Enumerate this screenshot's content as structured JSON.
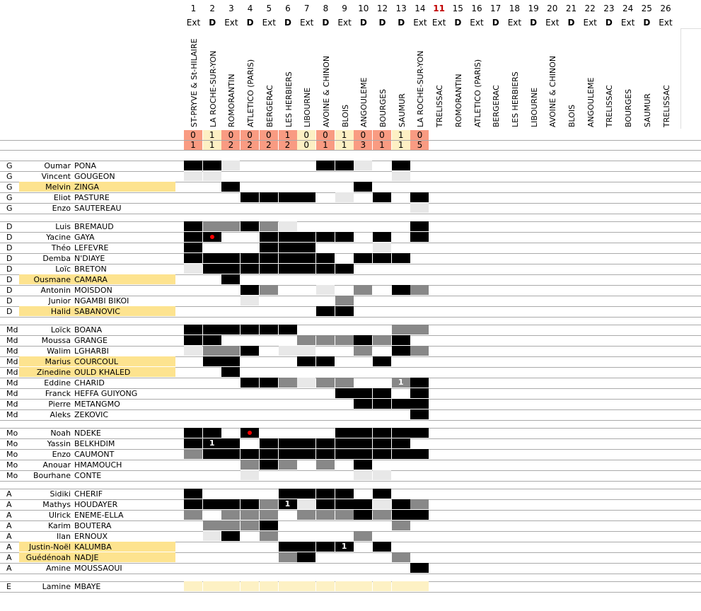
{
  "colors": {
    "loss": "#f99b82",
    "win": "#fdf0c4",
    "highlight": "#fde38f",
    "black": "#000000",
    "gray": "#888888",
    "light": "#e8e8e8"
  },
  "columns": [
    {
      "num": "1",
      "type": "Ext",
      "team": "ST-PRYVE & St-HILAIRE",
      "s1": "0",
      "s2": "1",
      "res": "loss"
    },
    {
      "num": "2",
      "type": "D",
      "team": "LA ROCHE-SUR-YON",
      "s1": "1",
      "s2": "1",
      "res": "win"
    },
    {
      "num": "3",
      "type": "Ext",
      "team": "ROMORANTIN",
      "s1": "0",
      "s2": "2",
      "res": "loss"
    },
    {
      "num": "4",
      "type": "D",
      "team": "ATLETICO (PARIS)",
      "s1": "0",
      "s2": "2",
      "res": "loss"
    },
    {
      "num": "5",
      "type": "Ext",
      "team": "BERGERAC",
      "s1": "0",
      "s2": "2",
      "res": "loss"
    },
    {
      "num": "6",
      "type": "D",
      "team": "LES HERBIERS",
      "s1": "1",
      "s2": "2",
      "res": "loss"
    },
    {
      "num": "7",
      "type": "Ext",
      "team": "LIBOURNE",
      "s1": "0",
      "s2": "0",
      "res": "win"
    },
    {
      "num": "8",
      "type": "D",
      "team": "AVOINE & CHINON",
      "s1": "0",
      "s2": "1",
      "res": "loss"
    },
    {
      "num": "9",
      "type": "Ext",
      "team": "BLOIS",
      "s1": "1",
      "s2": "1",
      "res": "win"
    },
    {
      "num": "10",
      "type": "D",
      "team": "ANGOULEME",
      "s1": "0",
      "s2": "3",
      "res": "loss"
    },
    {
      "num": "12",
      "type": "D",
      "team": "BOURGES",
      "s1": "0",
      "s2": "1",
      "res": "loss"
    },
    {
      "num": "13",
      "type": "D",
      "team": "SAUMUR",
      "s1": "1",
      "s2": "1",
      "res": "win"
    },
    {
      "num": "14",
      "type": "Ext",
      "team": "LA ROCHE-SUR-YON",
      "s1": "0",
      "s2": "5",
      "res": "loss"
    },
    {
      "num": "11",
      "type": "Ext",
      "team": "TRELISSAC",
      "red": true
    },
    {
      "num": "15",
      "type": "D",
      "team": "ROMORANTIN"
    },
    {
      "num": "16",
      "type": "Ext",
      "team": "ATLETICO (PARIS)"
    },
    {
      "num": "17",
      "type": "D",
      "team": "BERGERAC"
    },
    {
      "num": "18",
      "type": "Ext",
      "team": "LES HERBIERS"
    },
    {
      "num": "19",
      "type": "D",
      "team": "LIBOURNE"
    },
    {
      "num": "20",
      "type": "Ext",
      "team": "AVOINE & CHINON"
    },
    {
      "num": "21",
      "type": "D",
      "team": "BLOIS"
    },
    {
      "num": "22",
      "type": "Ext",
      "team": "ANGOULEME"
    },
    {
      "num": "23",
      "type": "D",
      "team": "TRELISSAC"
    },
    {
      "num": "24",
      "type": "Ext",
      "team": "BOURGES"
    },
    {
      "num": "25",
      "type": "D",
      "team": "SAUMUR"
    },
    {
      "num": "26",
      "type": "Ext",
      "team": "TRELISSAC"
    }
  ],
  "groups": [
    {
      "players": [
        {
          "pos": "G",
          "first": "Oumar",
          "last": "PONA",
          "cells": "BBL....BBL.B."
        },
        {
          "pos": "G",
          "first": "Vincent",
          "last": "GOUGEON",
          "cells": "LL.........L."
        },
        {
          "pos": "G",
          "first": "Melvin",
          "last": "ZINGA",
          "hl": true,
          "cells": "..B......B..."
        },
        {
          "pos": "G",
          "first": "Eliot",
          "last": "PASTURE",
          "cells": "...BBBB.L.B.B"
        },
        {
          "pos": "G",
          "first": "Enzo",
          "last": "SAUTEREAU",
          "cells": "............L"
        }
      ]
    },
    {
      "players": [
        {
          "pos": "D",
          "first": "Luis",
          "last": "BREMAUD",
          "cells": "BGGBGL......B"
        },
        {
          "pos": "D",
          "first": "Yacine",
          "last": "GAYA",
          "cells": "BB..BBBBB.B.B",
          "dot": [
            1
          ]
        },
        {
          "pos": "D",
          "first": "Théo",
          "last": "LEFEVRE",
          "cells": "B...BBB...L.."
        },
        {
          "pos": "D",
          "first": "Demba",
          "last": "N'DIAYE",
          "cells": "BBBBBBBB.BBB."
        },
        {
          "pos": "D",
          "first": "Loïc",
          "last": "BRETON",
          "cells": "LBBBBBBBB...."
        },
        {
          "pos": "D",
          "first": "Ousmane",
          "last": "CAMARA",
          "hl": true,
          "cells": "..B.........."
        },
        {
          "pos": "D",
          "first": "Antonin",
          "last": "MOISDON",
          "cells": "...BG..L.G.BG"
        },
        {
          "pos": "D",
          "first": "Junior",
          "last": "NGAMBI BIKOI",
          "cells": "...L....G...."
        },
        {
          "pos": "D",
          "first": "Halid",
          "last": "SABANOVIC",
          "hl": true,
          "cells": ".......BB...."
        }
      ]
    },
    {
      "players": [
        {
          "pos": "Md",
          "first": "Loïck",
          "last": "BOANA",
          "cells": "BBBBBB.....GG"
        },
        {
          "pos": "Md",
          "first": "Moussa",
          "last": "GRANGE",
          "cells": "BB....GGGBGB."
        },
        {
          "pos": "Md",
          "first": "Walim",
          "last": "LGHARBI",
          "cells": "LGGB.LL..G.BG"
        },
        {
          "pos": "Md",
          "first": "Marius",
          "last": "COURCOUL",
          "hl": true,
          "cells": ".BB...BB..B.."
        },
        {
          "pos": "Md",
          "first": "Zinedine",
          "last": "OULD KHALED",
          "hl": true,
          "cells": "..B.........."
        },
        {
          "pos": "Md",
          "first": "Eddine",
          "last": "CHARID",
          "cells": "...BBGLGG..GB",
          "goal": {
            "11": "1"
          }
        },
        {
          "pos": "Md",
          "first": "Franck",
          "last": "HEFFA GUIYONG",
          "cells": "........BBB.B"
        },
        {
          "pos": "Md",
          "first": "Pierre",
          "last": "METANGMO",
          "cells": ".........BBBB"
        },
        {
          "pos": "Md",
          "first": "Aleks",
          "last": "ZEKOVIC",
          "cells": "............B"
        }
      ]
    },
    {
      "players": [
        {
          "pos": "Mo",
          "first": "Noah",
          "last": "NDEKE",
          "cells": "BB.B....BBBBB",
          "dot": [
            3
          ]
        },
        {
          "pos": "Mo",
          "first": "Yassin",
          "last": "BELKHDIM",
          "cells": "BBB.BBBBBBBB.",
          "goal": {
            "1": "1"
          }
        },
        {
          "pos": "Mo",
          "first": "Enzo",
          "last": "CAUMONT",
          "cells": "GBBBBBBBBBBBB"
        },
        {
          "pos": "Mo",
          "first": "Anouar",
          "last": "HMAMOUCH",
          "cells": "...GBG.G.B..."
        },
        {
          "pos": "Mo",
          "first": "Bourhane",
          "last": "CONTE",
          "cells": "...L.....LL.."
        }
      ]
    },
    {
      "players": [
        {
          "pos": "A",
          "first": "Sidiki",
          "last": "CHERIF",
          "cells": "B....BBBB.B.."
        },
        {
          "pos": "A",
          "first": "Mathys",
          "last": "HOUDAYER",
          "cells": "BBBBGBLBBBLBG",
          "goal": {
            "5": "1"
          }
        },
        {
          "pos": "A",
          "first": "Ulrick",
          "last": "ENEME-ELLA",
          "cells": "G.GGG.GGGBGBB"
        },
        {
          "pos": "A",
          "first": "Karim",
          "last": "BOUTERA",
          "cells": ".GGGB......G."
        },
        {
          "pos": "A",
          "first": "Ilan",
          "last": "ERNOUX",
          "cells": ".LB.G....G..."
        },
        {
          "pos": "A",
          "first": "Justin-Noël",
          "last": "KALUMBA",
          "hl": true,
          "cells": ".....BBBB.B..",
          "goal": {
            "8": "1"
          }
        },
        {
          "pos": "A",
          "first": "Guédénoah",
          "last": "NADJE",
          "hl": true,
          "cells": ".....GB....G."
        },
        {
          "pos": "A",
          "first": "Amine",
          "last": "MOUSSAOUI",
          "cells": "............B"
        }
      ]
    },
    {
      "players": [
        {
          "pos": "E",
          "first": "Lamine",
          "last": "MBAYE",
          "cells": "YYYYYYYYYYYYY"
        }
      ]
    }
  ]
}
